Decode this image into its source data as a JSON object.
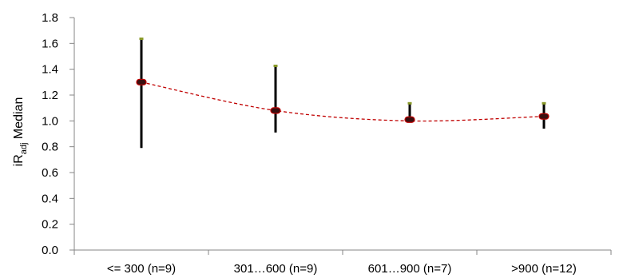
{
  "chart_data": {
    "type": "scatter",
    "categories": [
      "<= 300 (n=9)",
      "301…600 (n=9)",
      "601…900 (n=7)",
      ">900 (n=12)"
    ],
    "ylabel_parts": {
      "main": "iR",
      "sub": "adj",
      "suffix": " Median"
    },
    "ylim": [
      0.0,
      1.8
    ],
    "yticks": [
      "0.0",
      "0.2",
      "0.4",
      "0.6",
      "0.8",
      "1.0",
      "1.2",
      "1.4",
      "1.6",
      "1.8"
    ],
    "grid": false,
    "legend": "none",
    "series": [
      {
        "kind": "median_with_range",
        "median": [
          1.3,
          1.08,
          1.01,
          1.035
        ],
        "low": [
          0.79,
          0.91,
          1.0,
          0.94
        ],
        "high": [
          1.63,
          1.42,
          1.13,
          1.13
        ]
      }
    ],
    "trendline": {
      "style": "dashed",
      "values": [
        1.3,
        1.08,
        1.0,
        1.035
      ]
    },
    "colors": {
      "axis": "#868686",
      "whisker": "#000000",
      "median_marker_fill": "#3a0f10",
      "median_marker_edge": "#c00000",
      "cap_marker": "#8a9a2a",
      "trendline": "#c00000"
    }
  }
}
